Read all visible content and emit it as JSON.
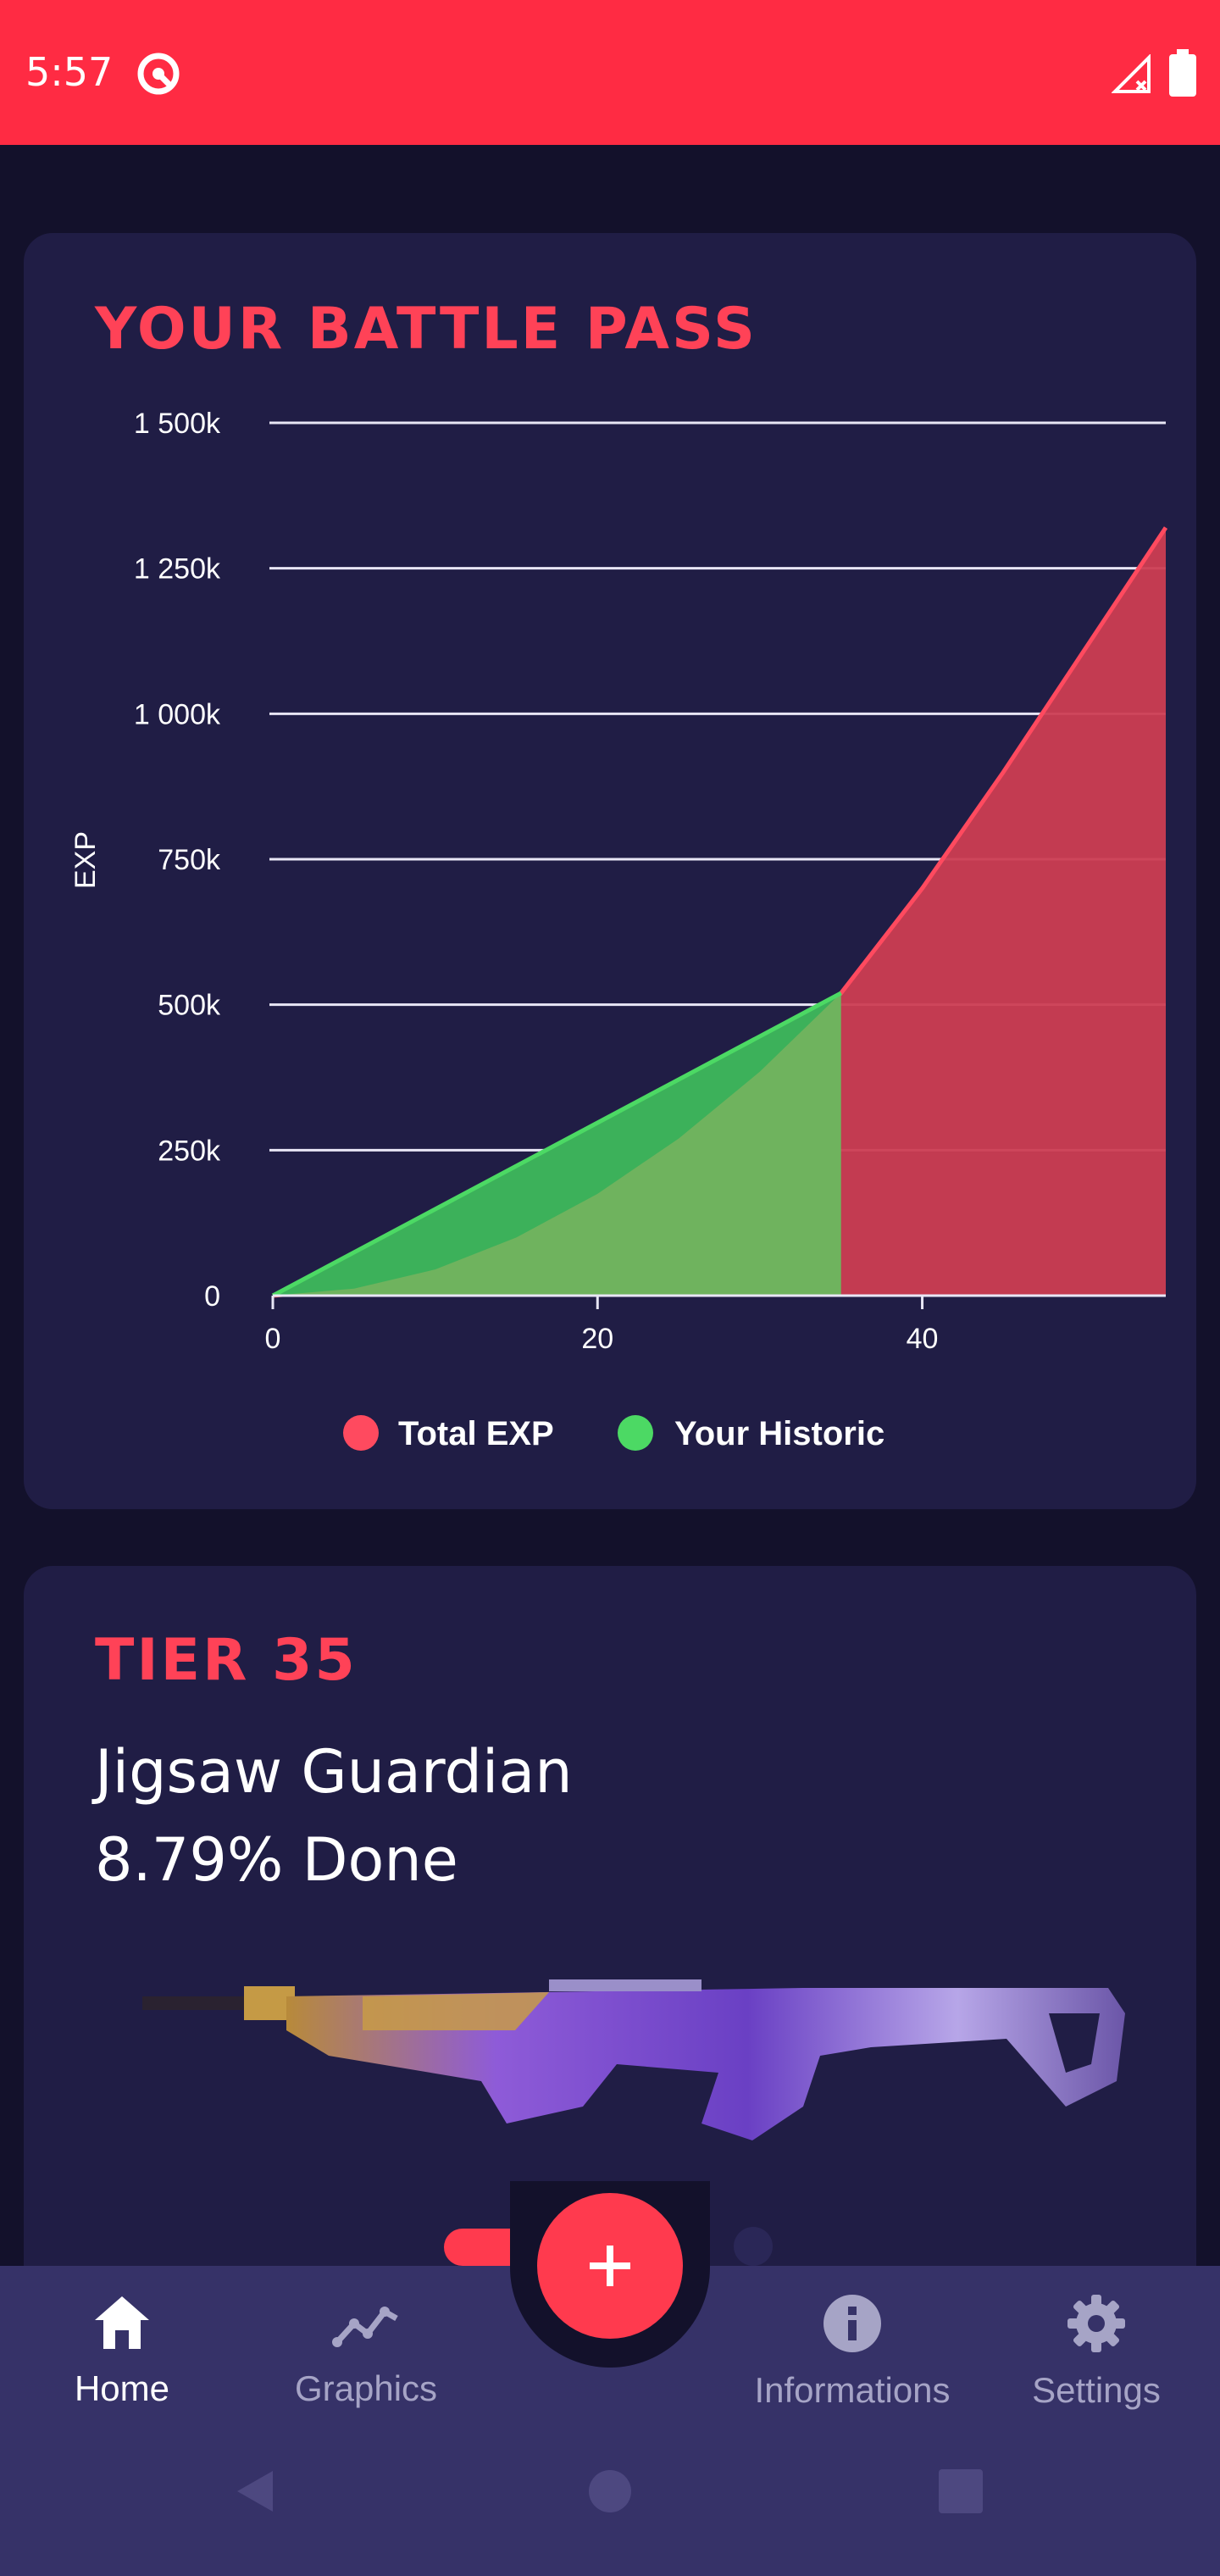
{
  "status_bar": {
    "time": "5:57"
  },
  "battle_pass": {
    "title": "YOUR BATTLE PASS",
    "chart_data": {
      "type": "area",
      "ylabel": "EXP",
      "xlabel": "",
      "xlim": [
        0,
        55
      ],
      "ylim": [
        0,
        1500000
      ],
      "x_ticks": [
        "0",
        "20",
        "40"
      ],
      "y_ticks": [
        "0",
        "250k",
        "500k",
        "750k",
        "1 000k",
        "1 250k",
        "1 500k"
      ],
      "grid": true,
      "legend_position": "bottom",
      "series": [
        {
          "name": "Total EXP",
          "color": "#ff4a5f",
          "x": [
            0,
            5,
            10,
            15,
            20,
            25,
            30,
            35,
            40,
            45,
            50,
            55
          ],
          "values": [
            0,
            12000,
            45000,
            100000,
            175000,
            270000,
            385000,
            520000,
            700000,
            900000,
            1110000,
            1320000
          ]
        },
        {
          "name": "Your Historic",
          "color": "#4cd964",
          "x": [
            0,
            35
          ],
          "values": [
            0,
            520000
          ]
        }
      ]
    }
  },
  "tier_card": {
    "title": "TIER 35",
    "reward_name": "Jigsaw Guardian",
    "progress_text": "8.79% Done"
  },
  "bottom_nav": {
    "items": [
      {
        "label": "Home",
        "icon": "home-icon",
        "active": true
      },
      {
        "label": "Graphics",
        "icon": "chart-line-icon",
        "active": false
      },
      {
        "label": "Informations",
        "icon": "info-icon",
        "active": false
      },
      {
        "label": "Settings",
        "icon": "gear-icon",
        "active": false
      }
    ],
    "fab_icon": "plus-icon"
  }
}
